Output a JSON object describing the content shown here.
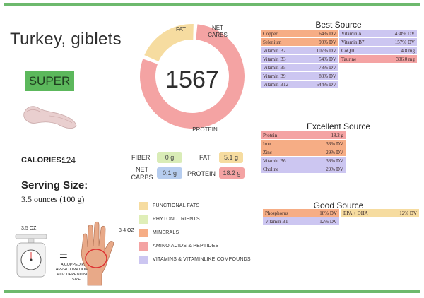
{
  "food": {
    "title": "Turkey, giblets",
    "badge": "SUPER"
  },
  "calories": {
    "label": "CALORIES:",
    "value": "124"
  },
  "serving": {
    "title": "Serving Size:",
    "value": "3.5 ounces (100 g)"
  },
  "donut": {
    "score": "1567",
    "segments": [
      {
        "label": "FAT",
        "fraction": 0.2,
        "color": "#f6dca0"
      },
      {
        "label": "NET\nCARBS",
        "fraction": 0.0,
        "color": "#b6cdef"
      },
      {
        "label": "PROTEIN",
        "fraction": 0.8,
        "color": "#f4a3a3"
      }
    ],
    "fat_label": "FAT",
    "netcarbs_line1": "NET",
    "netcarbs_line2": "CARBS",
    "protein_label": "PROTEIN"
  },
  "macros": {
    "fiber_label": "FIBER",
    "fiber_value": "0 g",
    "fiber_color": "#d9ecb7",
    "fat_label": "FAT",
    "fat_value": "5.1 g",
    "fat_color": "#f6dca0",
    "netcarbs_line1": "NET",
    "netcarbs_line2": "CARBS",
    "netcarbs_value": "0.1 g",
    "netcarbs_color": "#b6cdef",
    "protein_label": "PROTEIN",
    "protein_value": "18.2 g",
    "protein_color": "#f4a3a3"
  },
  "legend": [
    {
      "label": "FUNCTIONAL FATS",
      "color": "#f6dca0"
    },
    {
      "label": "PHYTONUTRIENTS",
      "color": "#dfeeb8"
    },
    {
      "label": "MINERALS",
      "color": "#f6ad85"
    },
    {
      "label": "AMINO ACIDS & PEPTIDES",
      "color": "#f4a3a3"
    },
    {
      "label": "VITAMINS & VITAMINLIKE COMPOUNDS",
      "color": "#ccc6f1"
    }
  ],
  "best_source": {
    "title": "Best Source",
    "left": [
      {
        "name": "Copper",
        "value": "64% DV",
        "kind": "mineral"
      },
      {
        "name": "Selenium",
        "value": "90% DV",
        "kind": "mineral"
      },
      {
        "name": "Vitamin B2",
        "value": "107% DV",
        "kind": "vit"
      },
      {
        "name": "Vitamin B3",
        "value": "54% DV",
        "kind": "vit"
      },
      {
        "name": "Vitamin B5",
        "value": "78% DV",
        "kind": "vit"
      },
      {
        "name": "Vitamin B9",
        "value": "83% DV",
        "kind": "vit"
      },
      {
        "name": "Vitamin B12",
        "value": "544% DV",
        "kind": "vit"
      }
    ],
    "right": [
      {
        "name": "Vitamin A",
        "value": "438% DV",
        "kind": "vit"
      },
      {
        "name": "Vitamin B7",
        "value": "157% DV",
        "kind": "vit"
      },
      {
        "name": "CoQ10",
        "value": "4.8 mg",
        "kind": "vit"
      },
      {
        "name": "Taurine",
        "value": "306.0 mg",
        "kind": "amino"
      }
    ]
  },
  "excellent_source": {
    "title": "Excellent Source",
    "rows": [
      {
        "name": "Protein",
        "value": "18.2 g",
        "kind": "amino"
      },
      {
        "name": "Iron",
        "value": "33% DV",
        "kind": "mineral"
      },
      {
        "name": "Zinc",
        "value": "29% DV",
        "kind": "mineral"
      },
      {
        "name": "Vitamin B6",
        "value": "38% DV",
        "kind": "vit"
      },
      {
        "name": "Choline",
        "value": "29% DV",
        "kind": "vit"
      }
    ]
  },
  "good_source": {
    "title": "Good Source",
    "left": [
      {
        "name": "Phosphorus",
        "value": "18% DV",
        "kind": "mineral"
      },
      {
        "name": "Vitamin B1",
        "value": "12% DV",
        "kind": "vit"
      }
    ],
    "right": [
      {
        "name": "EPA + DHA",
        "value": "12% DV",
        "kind": "func"
      }
    ]
  },
  "palm": {
    "scale_label": "3.5 OZ",
    "equals": "=",
    "note": "A CUPPED PALM APPROXIMATION IS 3-4 OZ DEPENDING ON SIZE",
    "oz_label": "3-4 OZ"
  }
}
